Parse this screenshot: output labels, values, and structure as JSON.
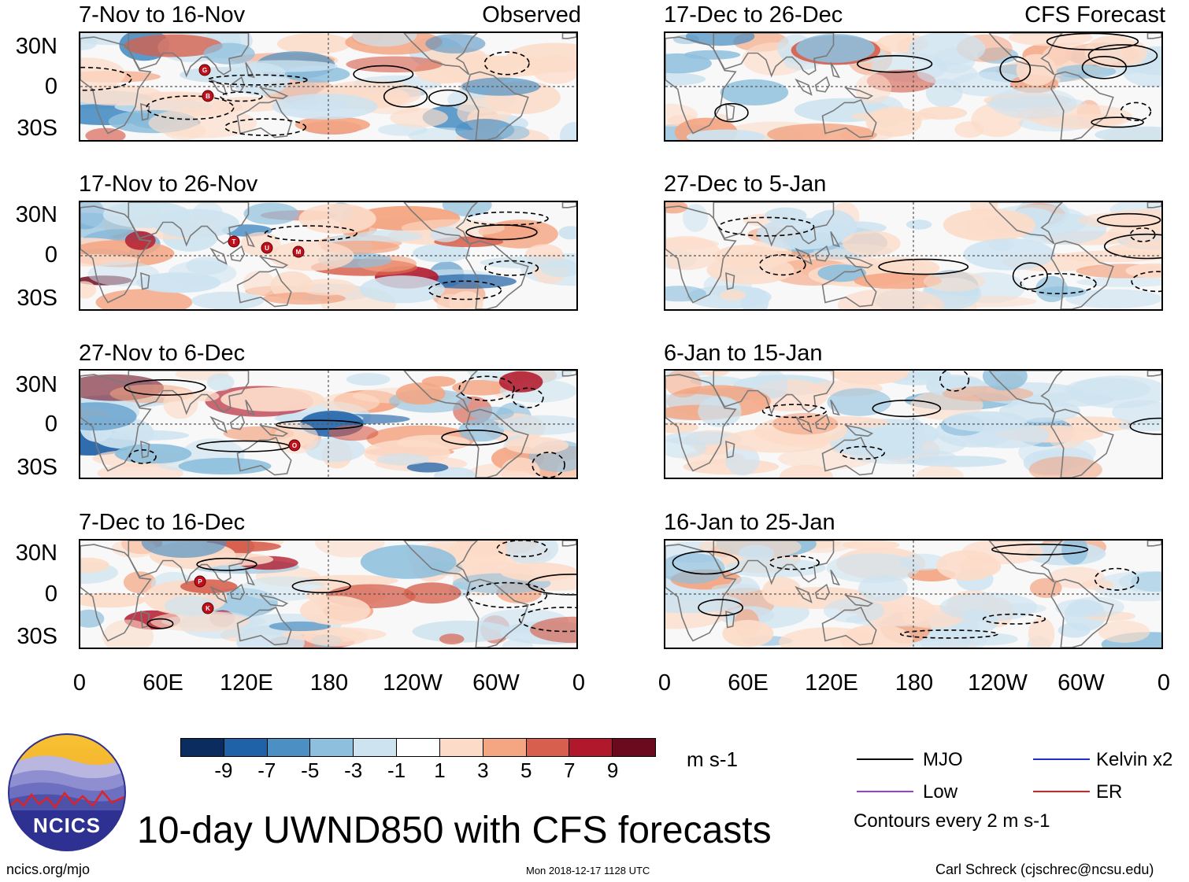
{
  "header": {
    "observed_label": "Observed",
    "forecast_label": "CFS Forecast"
  },
  "panels_left": [
    {
      "title": "7-Nov to 16-Nov",
      "storms": [
        "G",
        "B"
      ]
    },
    {
      "title": "17-Nov to 26-Nov",
      "storms": [
        "T",
        "U",
        "M"
      ]
    },
    {
      "title": "27-Nov to 6-Dec",
      "storms": [
        "O"
      ]
    },
    {
      "title": "7-Dec to 16-Dec",
      "storms": [
        "P",
        "K"
      ]
    }
  ],
  "panels_right": [
    {
      "title": "17-Dec to 26-Dec"
    },
    {
      "title": "27-Dec to 5-Jan"
    },
    {
      "title": "6-Jan to 15-Jan"
    },
    {
      "title": "16-Jan to 25-Jan"
    }
  ],
  "lat_labels": [
    "30N",
    "0",
    "30S"
  ],
  "lon_labels": [
    "0",
    "60E",
    "120E",
    "180",
    "120W",
    "60W",
    "0"
  ],
  "colorbar": {
    "colors": [
      "#0b2c5e",
      "#2062a8",
      "#4b8fc3",
      "#8ebfdd",
      "#cde3f0",
      "#ffffff",
      "#fcdcc9",
      "#f4a582",
      "#d6604d",
      "#b2182b",
      "#6b0a1f"
    ],
    "labels": [
      "-9",
      "-7",
      "-5",
      "-3",
      "-1",
      "1",
      "3",
      "5",
      "7",
      "9"
    ],
    "units": "m s-1"
  },
  "legend": {
    "items": [
      {
        "name": "MJO",
        "color": "#000000"
      },
      {
        "name": "Kelvin x2",
        "color": "#1f2fd0"
      },
      {
        "name": "Low",
        "color": "#9b3fd6"
      },
      {
        "name": "ER",
        "color": "#e02020"
      }
    ],
    "contour_note": "Contours every 2 m s-1"
  },
  "logo": {
    "text": "NCICS"
  },
  "footer": {
    "title": "10-day UWND850 with CFS forecasts",
    "url": "ncics.org/mjo",
    "timestamp": "Mon 2018-12-17 1128 UTC",
    "author": "Carl Schreck (cjschrec@ncsu.edu)"
  }
}
